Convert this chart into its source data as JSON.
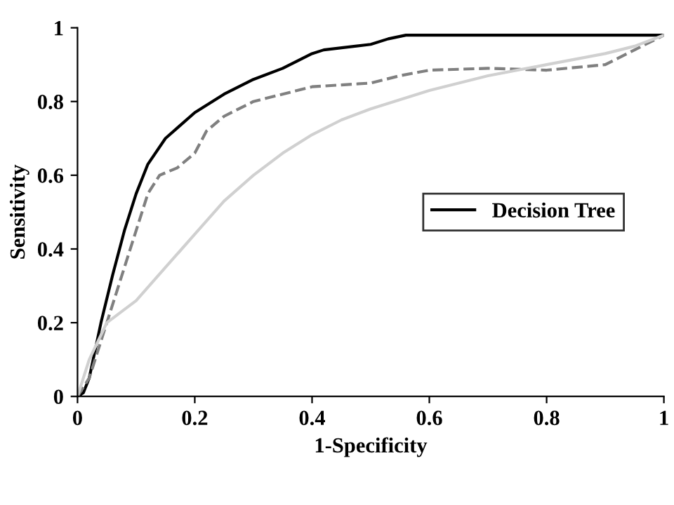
{
  "chart_data": {
    "type": "line",
    "xlabel": "1-Specificity",
    "ylabel": "Sensitivity",
    "xlim": [
      0,
      1
    ],
    "ylim": [
      0,
      1
    ],
    "xticks": [
      0,
      0.2,
      0.4,
      0.6,
      0.8,
      1
    ],
    "yticks": [
      0,
      0.2,
      0.4,
      0.6,
      0.8,
      1
    ],
    "grid": false,
    "legend": "center right",
    "marker": "none",
    "series": [
      {
        "name": "Decision Tree",
        "color": "#000000",
        "line_style": "solid",
        "x": [
          0,
          0.01,
          0.02,
          0.04,
          0.06,
          0.08,
          0.1,
          0.12,
          0.15,
          0.2,
          0.25,
          0.3,
          0.35,
          0.4,
          0.42,
          0.5,
          0.53,
          0.56,
          1
        ],
        "values": [
          0,
          0.01,
          0.05,
          0.2,
          0.33,
          0.45,
          0.55,
          0.63,
          0.7,
          0.77,
          0.82,
          0.86,
          0.89,
          0.93,
          0.94,
          0.955,
          0.97,
          0.98,
          0.98
        ]
      },
      {
        "color": "#808080",
        "line_style": "dashed",
        "x": [
          0,
          0.02,
          0.05,
          0.08,
          0.1,
          0.12,
          0.14,
          0.17,
          0.2,
          0.22,
          0.25,
          0.3,
          0.35,
          0.4,
          0.45,
          0.5,
          0.55,
          0.6,
          0.7,
          0.8,
          0.9,
          0.95,
          1
        ],
        "values": [
          0,
          0.05,
          0.2,
          0.35,
          0.45,
          0.55,
          0.6,
          0.62,
          0.66,
          0.72,
          0.76,
          0.8,
          0.82,
          0.84,
          0.845,
          0.85,
          0.87,
          0.885,
          0.89,
          0.885,
          0.9,
          0.94,
          0.98
        ]
      },
      {
        "color": "#d0d0d0",
        "line_style": "solid",
        "x": [
          0,
          0.02,
          0.05,
          0.1,
          0.15,
          0.2,
          0.25,
          0.3,
          0.35,
          0.4,
          0.45,
          0.5,
          0.6,
          0.7,
          0.8,
          0.9,
          0.95,
          1
        ],
        "values": [
          0,
          0.1,
          0.2,
          0.26,
          0.35,
          0.44,
          0.53,
          0.6,
          0.66,
          0.71,
          0.75,
          0.78,
          0.83,
          0.87,
          0.9,
          0.93,
          0.95,
          0.98
        ]
      }
    ]
  }
}
